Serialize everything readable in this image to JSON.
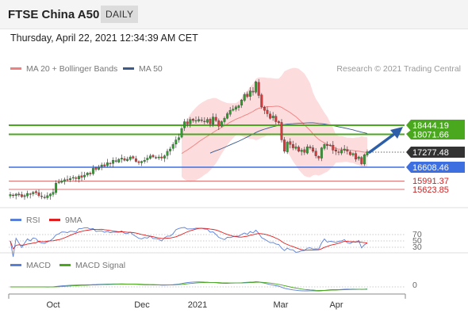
{
  "header": {
    "title": "FTSE China A50",
    "period": "DAILY",
    "datetime": "Thursday, April 22, 2021 12:34:39 AM CET"
  },
  "legend": {
    "ma20_label": "MA 20 + Bollinger Bands",
    "ma50_label": "MA 50",
    "ma20_color": "#f08080",
    "ma50_color": "#3a5a8c",
    "credit": "Research © 2021 Trading Central"
  },
  "levels": {
    "resistance_2": "18444.19",
    "resistance_1": "18071.66",
    "last_price": "17277.48",
    "pivot": "16608.46",
    "support_1": "15991.37",
    "support_2": "15623.85"
  },
  "rsi_panel": {
    "rsi_label": "RSI",
    "ma_label": "9MA",
    "rsi_color": "#5a7fd6",
    "ma_color": "#e02020",
    "level_70": "70",
    "level_50": "50",
    "level_30": "30"
  },
  "macd_panel": {
    "macd_label": "MACD",
    "signal_label": "MACD Signal",
    "macd_color": "#5a7fd6",
    "signal_color": "#4aa81e",
    "level_0": "0"
  },
  "x_axis": {
    "labels": [
      "Oct",
      "Dec",
      "2021",
      "Mar",
      "Apr"
    ]
  },
  "chart_data": {
    "type": "candlestick",
    "instrument": "FTSE China A50",
    "timeframe": "daily",
    "price_levels": [
      18444.19,
      18071.66,
      17277.48,
      16608.46,
      15991.37,
      15623.85
    ],
    "closes": [
      15400,
      15350,
      15420,
      15380,
      15300,
      15360,
      15450,
      15400,
      15500,
      15480,
      15350,
      15300,
      15280,
      15350,
      15420,
      15500,
      15900,
      15950,
      16000,
      16050,
      16050,
      16100,
      16150,
      16100,
      16200,
      16150,
      16250,
      16350,
      16300,
      16550,
      16500,
      16600,
      16700,
      16650,
      16800,
      16750,
      16900,
      16850,
      16950,
      17000,
      16900,
      16950,
      17050,
      17000,
      16850,
      16800,
      16850,
      16900,
      17000,
      17100,
      17050,
      17000,
      17050,
      17000,
      17100,
      17300,
      17400,
      17600,
      17800,
      17900,
      18300,
      18600,
      18500,
      18700,
      18650,
      18650,
      18700,
      18650,
      18600,
      18700,
      18500,
      18800,
      18650,
      18400,
      18600,
      18750,
      18950,
      19100,
      19150,
      19250,
      19300,
      19550,
      19800,
      19700,
      19950,
      19900,
      20350,
      19750,
      19250,
      19100,
      18950,
      18750,
      18850,
      18600,
      18550,
      17800,
      17300,
      17700,
      17600,
      17450,
      17500,
      17300,
      17350,
      17250,
      17500,
      17450,
      17300,
      17100,
      17000,
      17450,
      17600,
      17550,
      17550,
      17350,
      17300,
      17250,
      17350,
      17400,
      17300,
      17150,
      17200,
      16950,
      17050,
      16750,
      17150,
      17280
    ]
  }
}
